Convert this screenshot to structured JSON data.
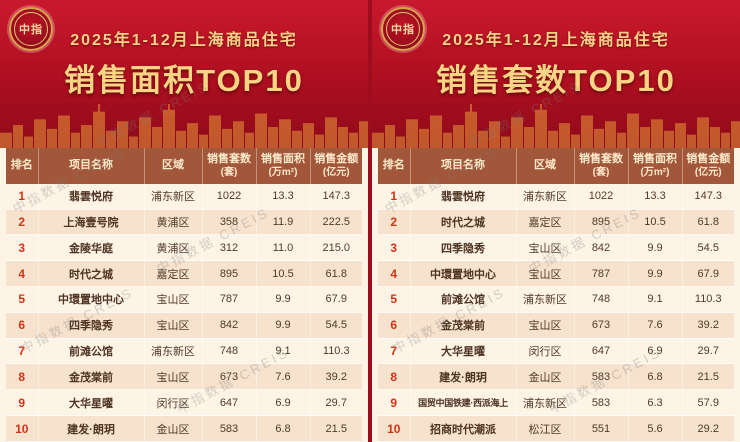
{
  "watermark": "中指数据 CREIS",
  "logo": {
    "label": "中指"
  },
  "colors": {
    "banner_red": "#ad0f20",
    "gold": "#f8d584",
    "table_header_brown": "#a2573b",
    "row_cream": "#fdf4e6",
    "row_tan": "#f6e2cd",
    "rank_red": "#cf3417"
  },
  "chart_data": [
    {
      "type": "table",
      "subtitle": "2025年1-12月上海商品住宅",
      "title": "销售面积TOP10",
      "columns": [
        {
          "label": "排名",
          "sub": ""
        },
        {
          "label": "项目名称",
          "sub": ""
        },
        {
          "label": "区域",
          "sub": ""
        },
        {
          "label": "销售套数",
          "sub": "(套)"
        },
        {
          "label": "销售面积",
          "sub": "(万m²)"
        },
        {
          "label": "销售金额",
          "sub": "(亿元)"
        }
      ],
      "rows": [
        [
          "1",
          "翡雲悦府",
          "浦东新区",
          "1022",
          "13.3",
          "147.3"
        ],
        [
          "2",
          "上海壹号院",
          "黄浦区",
          "358",
          "11.9",
          "222.5"
        ],
        [
          "3",
          "金陵华庭",
          "黄浦区",
          "312",
          "11.0",
          "215.0"
        ],
        [
          "4",
          "时代之城",
          "嘉定区",
          "895",
          "10.5",
          "61.8"
        ],
        [
          "5",
          "中環置地中心",
          "宝山区",
          "787",
          "9.9",
          "67.9"
        ],
        [
          "6",
          "四季隐秀",
          "宝山区",
          "842",
          "9.9",
          "54.5"
        ],
        [
          "7",
          "前滩公馆",
          "浦东新区",
          "748",
          "9.1",
          "110.3"
        ],
        [
          "8",
          "金茂棠前",
          "宝山区",
          "673",
          "7.6",
          "39.2"
        ],
        [
          "9",
          "大华星曜",
          "闵行区",
          "647",
          "6.9",
          "29.7"
        ],
        [
          "10",
          "建发·朗玥",
          "金山区",
          "583",
          "6.8",
          "21.5"
        ]
      ]
    },
    {
      "type": "table",
      "subtitle": "2025年1-12月上海商品住宅",
      "title": "销售套数TOP10",
      "columns": [
        {
          "label": "排名",
          "sub": ""
        },
        {
          "label": "项目名称",
          "sub": ""
        },
        {
          "label": "区域",
          "sub": ""
        },
        {
          "label": "销售套数",
          "sub": "(套)"
        },
        {
          "label": "销售面积",
          "sub": "(万m²)"
        },
        {
          "label": "销售金额",
          "sub": "(亿元)"
        }
      ],
      "rows": [
        [
          "1",
          "翡雲悦府",
          "浦东新区",
          "1022",
          "13.3",
          "147.3"
        ],
        [
          "2",
          "时代之城",
          "嘉定区",
          "895",
          "10.5",
          "61.8"
        ],
        [
          "3",
          "四季隐秀",
          "宝山区",
          "842",
          "9.9",
          "54.5"
        ],
        [
          "4",
          "中環置地中心",
          "宝山区",
          "787",
          "9.9",
          "67.9"
        ],
        [
          "5",
          "前滩公馆",
          "浦东新区",
          "748",
          "9.1",
          "110.3"
        ],
        [
          "6",
          "金茂棠前",
          "宝山区",
          "673",
          "7.6",
          "39.2"
        ],
        [
          "7",
          "大华星曜",
          "闵行区",
          "647",
          "6.9",
          "29.7"
        ],
        [
          "8",
          "建发·朗玥",
          "金山区",
          "583",
          "6.8",
          "21.5"
        ],
        [
          "9",
          "国贸中国铁建·西派海上",
          "浦东新区",
          "583",
          "6.3",
          "57.9"
        ],
        [
          "10",
          "招商时代潮派",
          "松江区",
          "551",
          "5.6",
          "29.2"
        ]
      ]
    }
  ]
}
